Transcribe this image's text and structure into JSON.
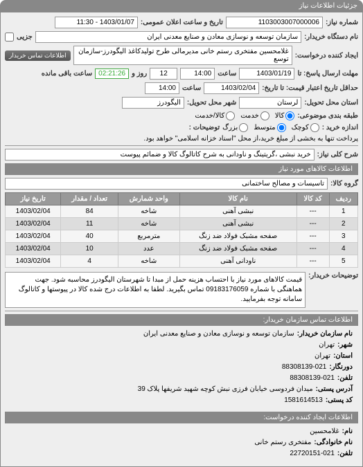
{
  "header": {
    "title": "جزئیات اطلاعات نیاز"
  },
  "top": {
    "req_no_label": "شماره نیاز:",
    "req_no": "1103003007000006",
    "pub_date_label": "تاریخ و ساعت اعلان عمومی:",
    "pub_date": "1403/01/07 - 11:30",
    "buyer_label": "نام دستگاه خریدار:",
    "buyer": "سازمان توسعه و نوسازی معادن و صنایع معدنی ایران",
    "creator_label": "ایجاد کننده درخواست:",
    "creator": "غلامحسین مفتخری رستم خانی مدیرمالی طرح تولیدکاغذ الیگودرز-سازمان توسع",
    "contact_btn": "اطلاعات تماس خریدار",
    "resp_label": "مهلت ارسال پاسخ: تا",
    "resp_date": "1403/01/19",
    "resp_hour_label": "ساعت",
    "resp_hour": "14:00",
    "days_val": "12",
    "days_label": "روز و",
    "countdown": "02:21:26",
    "remain_label": "ساعت باقی مانده",
    "valid_label": "حداقل تاریخ اعتبار قیمت: تا تاریخ:",
    "valid_date": "1403/02/04",
    "valid_hour": "14:00",
    "delivery_state_label": "استان محل تحویل:",
    "delivery_state": "لرستان",
    "delivery_city_label": "شهر محل تحویل:",
    "delivery_city": "الیگودرز",
    "pkg_label": "طبقه بندی موضوعی:",
    "r_goods": "کالا",
    "r_service": "خدمت",
    "r_both": "کالا/خدمت",
    "size_label": "اندازه خرید :",
    "r_small": "کوچک",
    "r_medium": "متوسط",
    "r_large": "بزرگ",
    "payment_note_label": "توضیحات :",
    "payment_note": "پرداخت تنها به بخشی از مبلغ خرید،از محل \"اسناد خزانه اسلامی\" خواهد بود."
  },
  "subject": {
    "label": "شرح کلی نیاز:",
    "value": "خرید نبشی ،گریتینگ و ناودانی به شرح کاتالوگ کالا و ضمائم پیوست"
  },
  "goods": {
    "header": "اطلاعات کالاهای مورد نیاز",
    "group_label": "گروه کالا:",
    "group": "تاسیسات و مصالح ساختمانی",
    "columns": [
      "ردیف",
      "کد کالا",
      "نام کالا",
      "واحد شمارش",
      "تعداد / مقدار",
      "تاریخ نیاز"
    ],
    "rows": [
      [
        "1",
        "---",
        "نبشی آهنی",
        "شاخه",
        "84",
        "1403/02/04"
      ],
      [
        "2",
        "---",
        "نبشی آهنی",
        "شاخه",
        "11",
        "1403/02/04"
      ],
      [
        "3",
        "---",
        "صفحه مشبک فولاد ضد زنگ",
        "مترمربع",
        "40",
        "1403/02/04"
      ],
      [
        "4",
        "---",
        "صفحه مشبک فولاد ضد زنگ",
        "عدد",
        "10",
        "1403/02/04"
      ],
      [
        "5",
        "---",
        "ناودانی آهنی",
        "شاخه",
        "4",
        "1403/02/04"
      ]
    ]
  },
  "buyer_note": {
    "label": "توضیحات خریدار:",
    "text": "قیمت کالاهای مورد نیاز با احتساب هزینه حمل از مبدا تا شهرستان الیگودرز محاسبه شود. جهت هماهنگی با شماره 09183176059 تماس بگیرید. لطفا به اطلاعات درج شده کالا در پیوستها و کاتالوگ سامانه توجه بفرمایید."
  },
  "contact": {
    "header": "اطلاعات تماس سازمان خریدار:",
    "org_label": "نام سازمان خریدار:",
    "org": "سازمان توسعه و نوسازی معادن و صنایع معدنی ایران",
    "city_label": "شهر:",
    "city": "تهران",
    "state_label": "استان:",
    "state": "تهران",
    "dorngar_label": "دورنگار:",
    "dorngar": "88308139-021",
    "tel_label": "تلفن:",
    "tel": "88308139-021",
    "addr_label": "آدرس پستی:",
    "addr": "میدان فردوسی خیابان فرزی نبش کوچه شهید شریفها پلاک 39",
    "zip_label": "کد پستی:",
    "zip": "1581614513"
  },
  "requester": {
    "header": "اطلاعات ایجاد کننده درخواست:",
    "name_label": "نام:",
    "name": "غلامحسین",
    "family_label": "نام خانوادگی:",
    "family": "مفتخری رستم خانی",
    "tel_label": "تلفن:",
    "tel": "22720151-021"
  }
}
